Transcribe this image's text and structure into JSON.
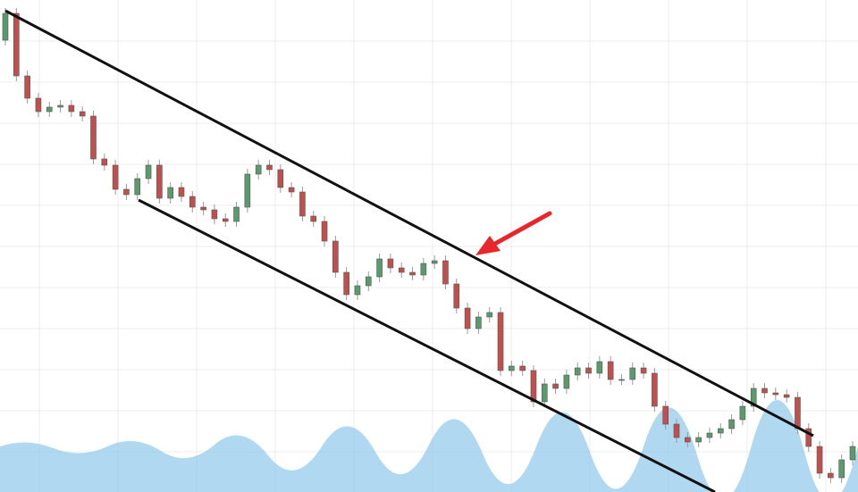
{
  "chart_data": {
    "type": "candlestick",
    "up_color": "#5a9a6c",
    "down_color": "#c0504d",
    "ylim": [
      0,
      551
    ],
    "open": [
      506,
      536,
      466,
      441,
      426,
      431,
      433,
      426,
      421,
      373,
      366,
      339,
      333,
      351,
      366,
      329,
      341,
      331,
      319,
      316,
      306,
      303,
      319,
      356,
      366,
      361,
      341,
      336,
      309,
      303,
      281,
      246,
      221,
      231,
      241,
      261,
      251,
      246,
      243,
      256,
      259,
      233,
      206,
      183,
      196,
      201,
      136,
      141,
      136,
      101,
      121,
      116,
      131,
      139,
      133,
      146,
      126,
      126,
      139,
      133,
      96,
      76,
      61,
      56,
      61,
      66,
      71,
      81,
      96,
      116,
      111,
      109,
      106,
      71,
      51,
      21,
      16,
      36
    ],
    "high": [
      542,
      542,
      472,
      447,
      437,
      439,
      439,
      432,
      427,
      379,
      372,
      345,
      357,
      372,
      372,
      347,
      347,
      337,
      325,
      322,
      312,
      325,
      362,
      372,
      372,
      367,
      347,
      342,
      315,
      309,
      287,
      252,
      237,
      247,
      267,
      267,
      257,
      252,
      262,
      265,
      265,
      239,
      212,
      202,
      207,
      207,
      147,
      147,
      142,
      127,
      127,
      137,
      145,
      145,
      152,
      152,
      132,
      145,
      145,
      139,
      102,
      82,
      67,
      67,
      72,
      77,
      87,
      102,
      122,
      122,
      117,
      115,
      112,
      77,
      57,
      27,
      42,
      57
    ],
    "low": [
      500,
      460,
      435,
      420,
      420,
      425,
      420,
      415,
      367,
      360,
      333,
      327,
      327,
      345,
      323,
      323,
      325,
      313,
      310,
      300,
      297,
      297,
      313,
      350,
      355,
      335,
      330,
      303,
      297,
      275,
      240,
      215,
      215,
      225,
      235,
      245,
      240,
      237,
      237,
      250,
      227,
      200,
      177,
      177,
      190,
      130,
      130,
      130,
      95,
      95,
      110,
      110,
      125,
      127,
      127,
      120,
      120,
      120,
      127,
      90,
      70,
      55,
      50,
      50,
      55,
      60,
      65,
      75,
      90,
      105,
      103,
      100,
      65,
      45,
      15,
      10,
      10,
      30
    ],
    "close": [
      536,
      466,
      441,
      426,
      431,
      433,
      426,
      421,
      373,
      366,
      339,
      333,
      351,
      366,
      329,
      341,
      331,
      319,
      316,
      306,
      303,
      319,
      356,
      366,
      361,
      341,
      336,
      309,
      303,
      281,
      246,
      221,
      231,
      241,
      261,
      251,
      246,
      243,
      256,
      259,
      233,
      206,
      183,
      196,
      201,
      136,
      141,
      136,
      101,
      121,
      116,
      131,
      139,
      133,
      146,
      126,
      126,
      139,
      133,
      96,
      76,
      61,
      56,
      61,
      66,
      71,
      81,
      96,
      116,
      111,
      109,
      106,
      71,
      51,
      21,
      16,
      36,
      51
    ]
  }
}
